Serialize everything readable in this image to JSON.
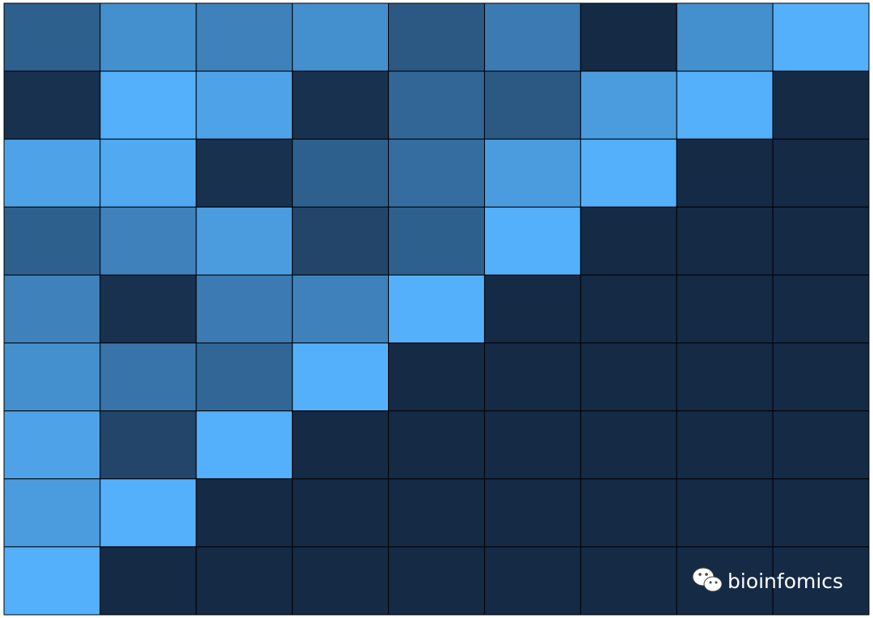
{
  "chart_data": {
    "type": "heatmap",
    "values": [
      [
        0.4,
        0.75,
        0.65,
        0.75,
        0.35,
        0.6,
        0.0,
        0.75,
        1.0
      ],
      [
        0.05,
        1.0,
        0.9,
        0.05,
        0.45,
        0.35,
        0.85,
        1.0,
        0.0
      ],
      [
        0.9,
        0.95,
        0.05,
        0.4,
        0.5,
        0.85,
        1.0,
        0.0,
        0.0
      ],
      [
        0.4,
        0.65,
        0.85,
        0.2,
        0.4,
        1.0,
        0.0,
        0.0,
        0.0
      ],
      [
        0.65,
        0.05,
        0.6,
        0.65,
        1.0,
        0.0,
        0.0,
        0.0,
        0.0
      ],
      [
        0.75,
        0.55,
        0.45,
        1.0,
        0.0,
        0.0,
        0.0,
        0.0,
        0.0
      ],
      [
        0.9,
        0.2,
        1.0,
        0.0,
        0.0,
        0.0,
        0.0,
        0.0,
        0.0
      ],
      [
        0.85,
        1.0,
        0.0,
        0.0,
        0.0,
        0.0,
        0.0,
        0.0,
        0.0
      ],
      [
        1.0,
        0.0,
        0.0,
        0.0,
        0.0,
        0.0,
        0.0,
        0.0,
        0.0
      ]
    ],
    "colormap": [
      "#152a45",
      "#54b0fa"
    ],
    "zlim": [
      0,
      1
    ],
    "watermark": "bioinfomics"
  }
}
